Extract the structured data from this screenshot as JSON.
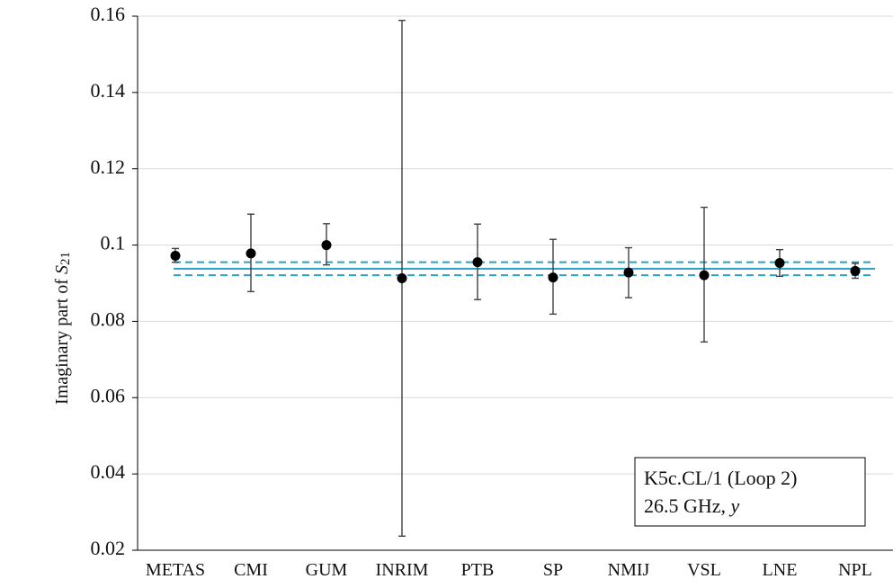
{
  "chart_data": {
    "type": "scatter",
    "title": "",
    "xlabel": "",
    "ylabel_main": "Imaginary  part of ",
    "ylabel_var": "S",
    "ylabel_sub": "21",
    "categories": [
      "METAS",
      "CMI",
      "GUM",
      "INRIM",
      "PTB",
      "SP",
      "NMIJ",
      "VSL",
      "LNE",
      "NPL"
    ],
    "values": [
      0.0972,
      0.0978,
      0.1,
      0.0913,
      0.0955,
      0.0915,
      0.0928,
      0.0921,
      0.0953,
      0.0932
    ],
    "error_low": [
      0.0955,
      0.0878,
      0.0948,
      0.0237,
      0.0857,
      0.0819,
      0.0862,
      0.0746,
      0.0918,
      0.0913
    ],
    "error_high": [
      0.0991,
      0.1081,
      0.1056,
      0.1589,
      0.1055,
      0.1015,
      0.0993,
      0.1099,
      0.0988,
      0.0952
    ],
    "reference_value": 0.0938,
    "reference_band": [
      0.0921,
      0.0955
    ],
    "ylim": [
      0.02,
      0.16
    ],
    "yticks": [
      0.02,
      0.04,
      0.06,
      0.08,
      0.1,
      0.12,
      0.14,
      0.16
    ],
    "ytick_labels": [
      "0.02",
      "0.04",
      "0.06",
      "0.08",
      "0.1",
      "0.12",
      "0.14",
      "0.16"
    ],
    "grid": true,
    "annotation": {
      "line1": "K5c.CL/1 (Loop 2)",
      "line2_text": "26.5 GHz, ",
      "line2_var": "y",
      "position": "bottom-right"
    },
    "colors": {
      "points": "#000000",
      "error_bars": "#404040",
      "reference": "#2aa0c8",
      "grid": "#d9d9d9",
      "axis": "#000000"
    }
  }
}
